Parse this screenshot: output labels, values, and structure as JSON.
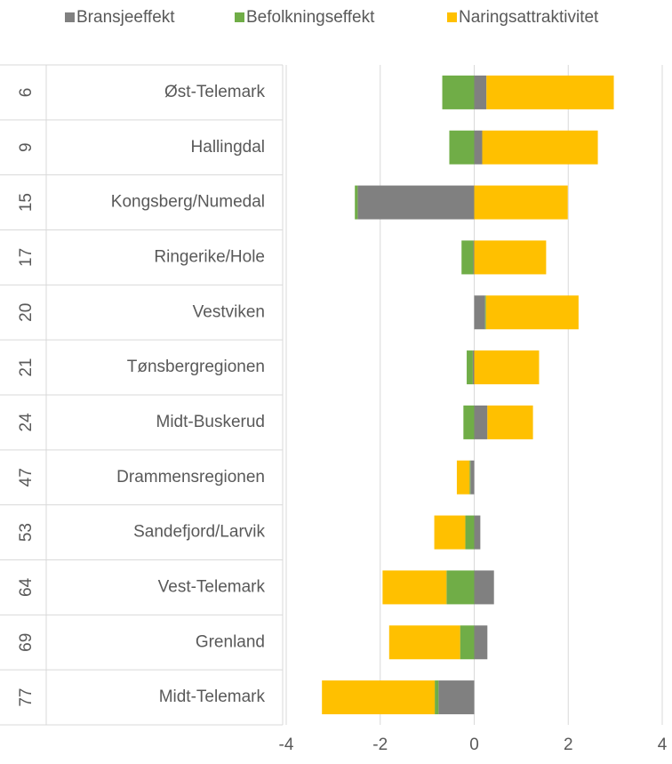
{
  "chart_data": {
    "type": "bar",
    "orientation": "horizontal",
    "stacked": true,
    "ranks": [
      6,
      9,
      15,
      17,
      20,
      21,
      24,
      47,
      53,
      64,
      69,
      77
    ],
    "categories": [
      "Øst-Telemark",
      "Hallingdal",
      "Kongsberg/Numedal",
      "Ringerike/Hole",
      "Vestviken",
      "Tønsbergregionen",
      "Midt-Buskerud",
      "Drammensregionen",
      "Sandefjord/Larvik",
      "Vest-Telemark",
      "Grenland",
      "Midt-Telemark"
    ],
    "series": [
      {
        "name": "Bransjeeffekt",
        "color": "#808080",
        "values": [
          0.26,
          0.17,
          -2.48,
          -0.02,
          0.23,
          -0.03,
          0.28,
          -0.08,
          0.13,
          0.42,
          0.28,
          -0.76
        ]
      },
      {
        "name": "Befolkningseffekt",
        "color": "#70ad47",
        "values": [
          -0.68,
          -0.53,
          -0.06,
          -0.25,
          0.02,
          -0.13,
          -0.23,
          -0.02,
          -0.19,
          -0.59,
          -0.3,
          -0.08
        ]
      },
      {
        "name": "Naringsattraktivitet",
        "color": "#ffc000",
        "values": [
          2.71,
          2.46,
          1.99,
          1.53,
          1.97,
          1.38,
          0.97,
          -0.27,
          -0.66,
          -1.36,
          -1.51,
          -2.4
        ]
      }
    ],
    "xlim": [
      -4,
      4
    ],
    "xticks": [
      -4,
      -2,
      0,
      2,
      4
    ],
    "grid": true,
    "legend": "top"
  }
}
